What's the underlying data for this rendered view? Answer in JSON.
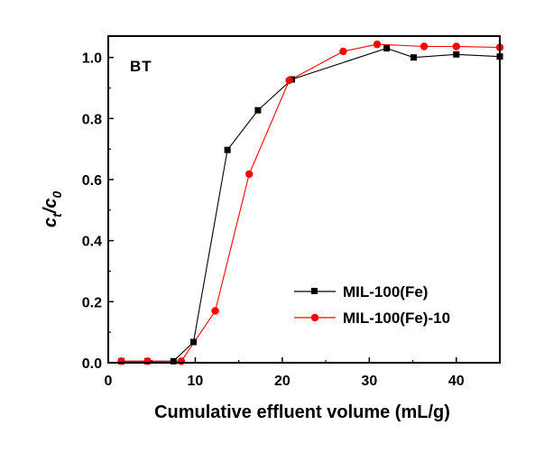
{
  "chart_data": {
    "type": "line",
    "annotation": "BT",
    "xlabel": "Cumulative effluent volume (mL/g)",
    "ylabel_main": "c",
    "ylabel_sub_t": "t",
    "ylabel_sep": "/c",
    "ylabel_sub_0": "0",
    "xlim": [
      0,
      45
    ],
    "ylim": [
      0,
      1.07
    ],
    "xticks": [
      0,
      10,
      20,
      30,
      40
    ],
    "xtick_labels": [
      "0",
      "10",
      "20",
      "30",
      "40"
    ],
    "yticks": [
      0,
      0.2,
      0.4,
      0.6,
      0.8,
      1.0
    ],
    "ytick_labels": [
      "0.0",
      "0.2",
      "0.4",
      "0.6",
      "0.8",
      "1.0"
    ],
    "grid": false,
    "legend_position": "center-right",
    "series": [
      {
        "name": "MIL-100(Fe)",
        "color": "#000000",
        "marker": "square",
        "x": [
          1.5,
          4.5,
          7.5,
          9.8,
          13.7,
          17.2,
          21.1,
          32.0,
          35.1,
          40.0,
          45.0
        ],
        "y": [
          0.005,
          0.005,
          0.005,
          0.068,
          0.697,
          0.827,
          0.928,
          1.03,
          1.0,
          1.01,
          1.003
        ]
      },
      {
        "name": "MIL-100(Fe)-10",
        "color": "#ff0000",
        "marker": "circle",
        "x": [
          1.5,
          4.5,
          8.4,
          12.3,
          16.2,
          20.8,
          27.0,
          30.9,
          36.3,
          40.0,
          45.0
        ],
        "y": [
          0.005,
          0.005,
          0.005,
          0.17,
          0.618,
          0.925,
          1.02,
          1.043,
          1.036,
          1.036,
          1.033
        ]
      }
    ]
  }
}
